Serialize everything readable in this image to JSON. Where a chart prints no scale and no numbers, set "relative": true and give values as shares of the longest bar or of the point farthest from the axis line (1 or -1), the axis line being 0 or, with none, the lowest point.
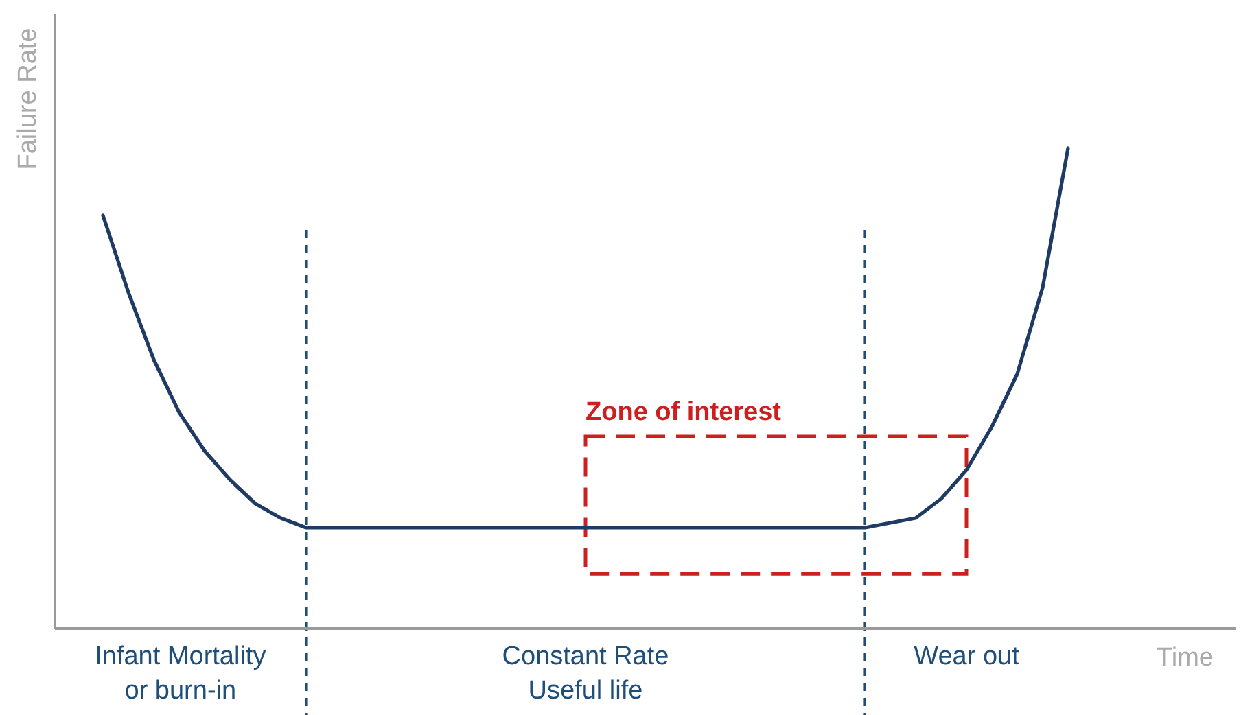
{
  "chart_data": {
    "type": "line",
    "relative": true,
    "xlabel": "Time",
    "ylabel": "Failure Rate",
    "marker": "none",
    "line_style": "solid",
    "categories": [
      null,
      null,
      null,
      null,
      null,
      null,
      null,
      null,
      null,
      null,
      null,
      null,
      null,
      null,
      null,
      null,
      null,
      null,
      null,
      null,
      null,
      null,
      null,
      null,
      null,
      null,
      null,
      null,
      null,
      null,
      null,
      null,
      null,
      null,
      null,
      null,
      null,
      null,
      null
    ],
    "series": [
      {
        "color": "#1f3b63",
        "values": [
          0.86,
          0.7,
          0.56,
          0.45,
          0.37,
          0.31,
          0.26,
          0.23,
          0.21,
          0.21,
          0.21,
          0.21,
          0.21,
          0.21,
          0.21,
          0.21,
          0.21,
          0.21,
          0.21,
          0.21,
          0.21,
          0.21,
          0.21,
          0.21,
          0.21,
          0.21,
          0.21,
          0.21,
          0.21,
          0.21,
          0.21,
          0.22,
          0.23,
          0.27,
          0.33,
          0.42,
          0.53,
          0.71,
          1.0
        ]
      }
    ],
    "annotations": [
      "Zone of interest",
      "Infant Mortality\nor burn-in",
      "Constant Rate\nUseful life",
      "Wear out"
    ]
  }
}
